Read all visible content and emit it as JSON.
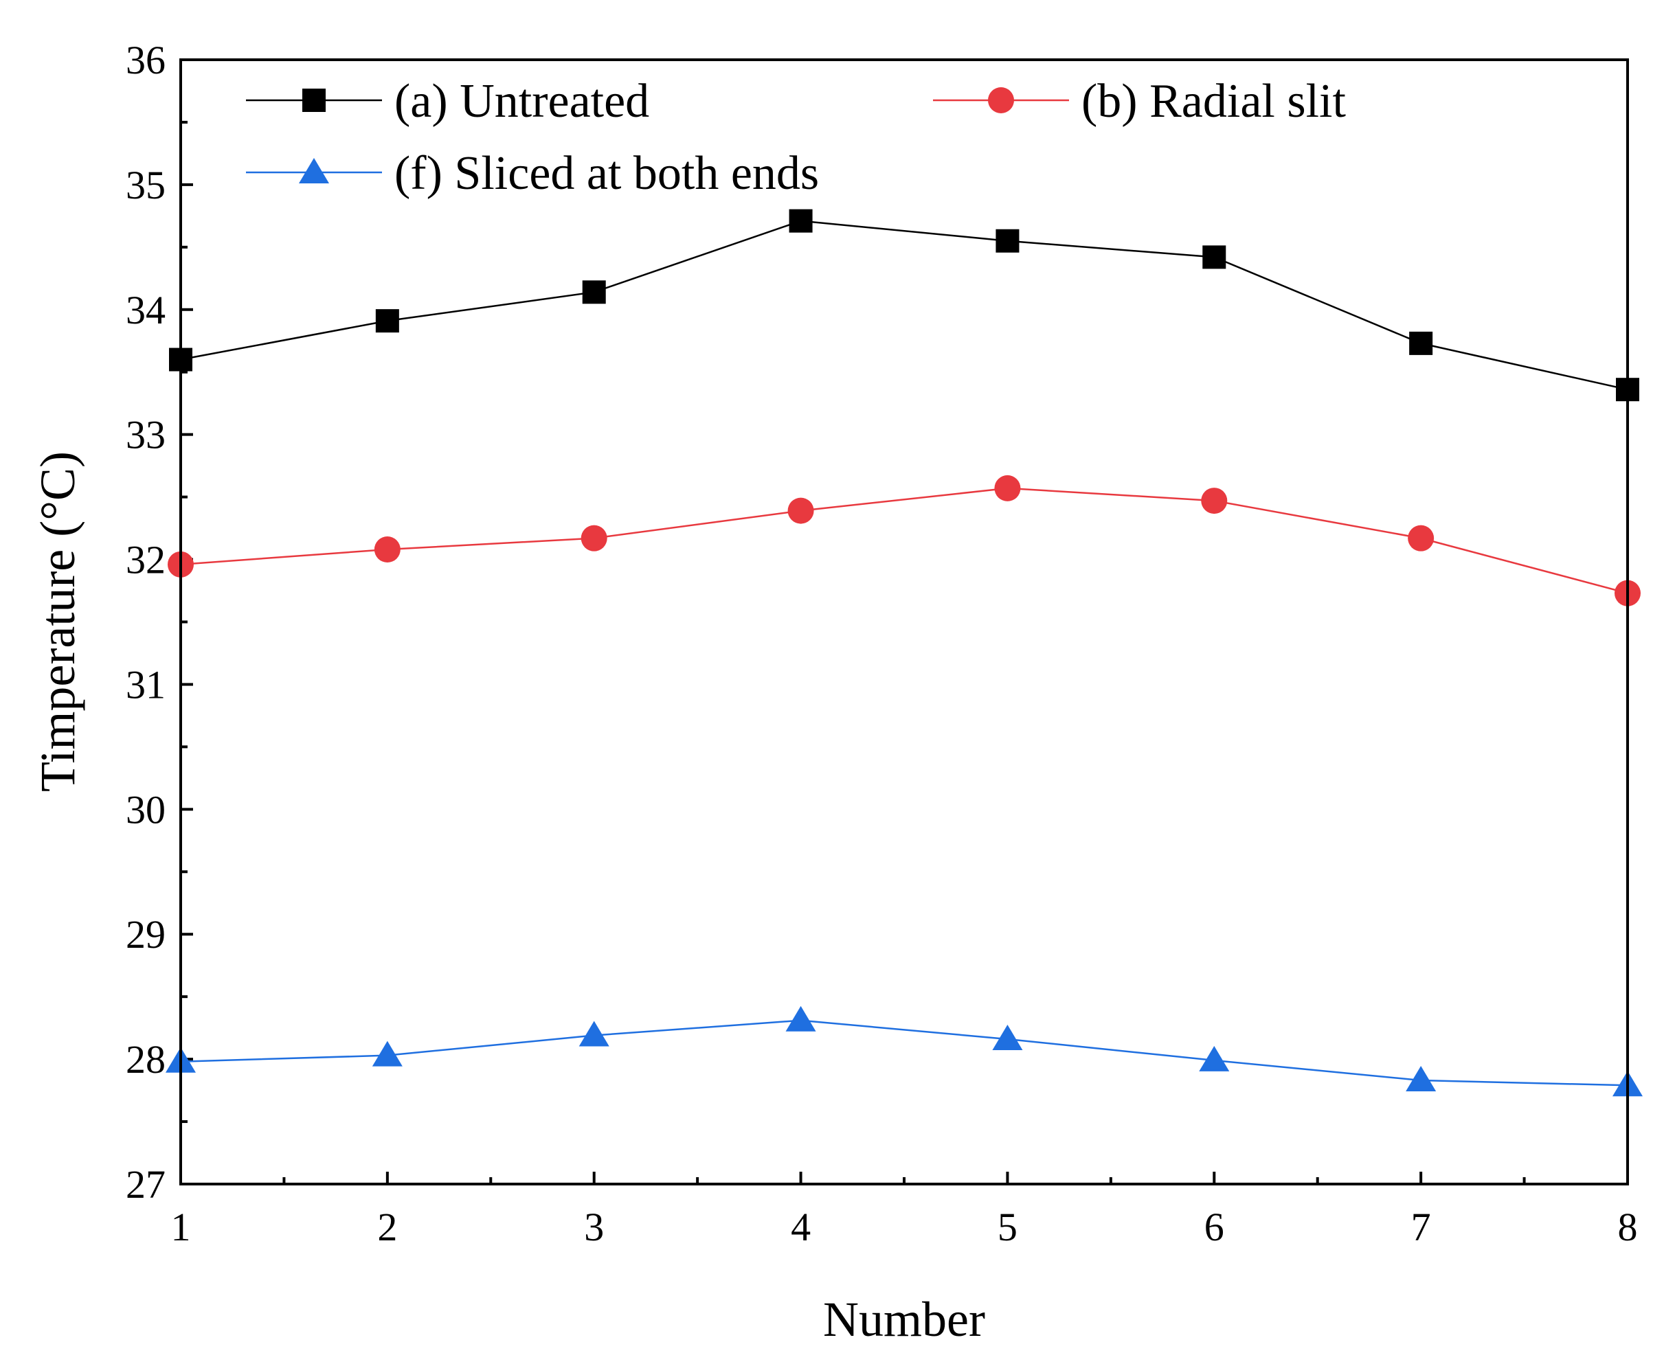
{
  "chart_data": {
    "type": "line",
    "title": "",
    "xlabel": "Number",
    "ylabel": "Timperature (°C)",
    "xlim": [
      1,
      8
    ],
    "ylim": [
      27,
      36
    ],
    "x": [
      1,
      2,
      3,
      4,
      5,
      6,
      7,
      8
    ],
    "xticks": [
      "1",
      "2",
      "3",
      "4",
      "5",
      "6",
      "7",
      "8"
    ],
    "yticks": [
      "27",
      "28",
      "29",
      "30",
      "31",
      "32",
      "33",
      "34",
      "35",
      "36"
    ],
    "grid": false,
    "legend_position": "top",
    "series": [
      {
        "name": "(a) Untreated",
        "color": "#000000",
        "marker": "square",
        "values": [
          33.6,
          33.91,
          34.14,
          34.71,
          34.55,
          34.42,
          33.73,
          33.36
        ]
      },
      {
        "name": "(b) Radial slit",
        "color": "#e8393f",
        "marker": "circle",
        "values": [
          31.96,
          32.08,
          32.17,
          32.39,
          32.57,
          32.47,
          32.17,
          31.73
        ]
      },
      {
        "name": "(f) Sliced at both ends",
        "color": "#1f6fe0",
        "marker": "triangle",
        "values": [
          27.98,
          28.03,
          28.19,
          28.31,
          28.16,
          27.99,
          27.83,
          27.79
        ]
      }
    ]
  }
}
